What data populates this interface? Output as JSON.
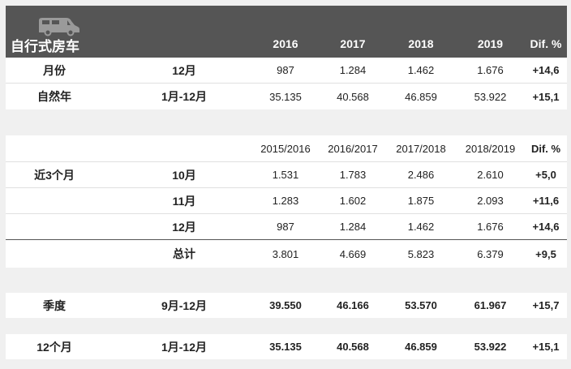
{
  "header": {
    "title": "自行式房车",
    "icon": "rv-icon",
    "years": [
      "2016",
      "2017",
      "2018",
      "2019"
    ],
    "dif": "Dif. %"
  },
  "top_rows": [
    {
      "label": "月份",
      "month": "12月",
      "v": [
        "987",
        "1.284",
        "1.462",
        "1.676"
      ],
      "dif": "+14,6"
    },
    {
      "label": "自然年",
      "month": "1月-12月",
      "v": [
        "35.135",
        "40.568",
        "46.859",
        "53.922"
      ],
      "dif": "+15,1"
    }
  ],
  "season_header": {
    "years": [
      "2015/2016",
      "2016/2017",
      "2017/2018",
      "2018/2019"
    ],
    "dif": "Dif. %"
  },
  "last3": {
    "label": "近3个月",
    "rows": [
      {
        "month": "10月",
        "v": [
          "1.531",
          "1.783",
          "2.486",
          "2.610"
        ],
        "dif": "+5,0"
      },
      {
        "month": "11月",
        "v": [
          "1.283",
          "1.602",
          "1.875",
          "2.093"
        ],
        "dif": "+11,6"
      },
      {
        "month": "12月",
        "v": [
          "987",
          "1.284",
          "1.462",
          "1.676"
        ],
        "dif": "+14,6"
      }
    ],
    "total": {
      "month": "总计",
      "v": [
        "3.801",
        "4.669",
        "5.823",
        "6.379"
      ],
      "dif": "+9,5"
    }
  },
  "quarter": {
    "label": "季度",
    "month": "9月-12月",
    "v": [
      "39.550",
      "46.166",
      "53.570",
      "61.967"
    ],
    "dif": "+15,7"
  },
  "twelve": {
    "label": "12个月",
    "month": "1月-12月",
    "v": [
      "35.135",
      "40.568",
      "46.859",
      "53.922"
    ],
    "dif": "+15,1"
  },
  "colors": {
    "header_bg": "#555555",
    "row_bg": "#ffffff",
    "page_bg": "#f0f0f0"
  }
}
